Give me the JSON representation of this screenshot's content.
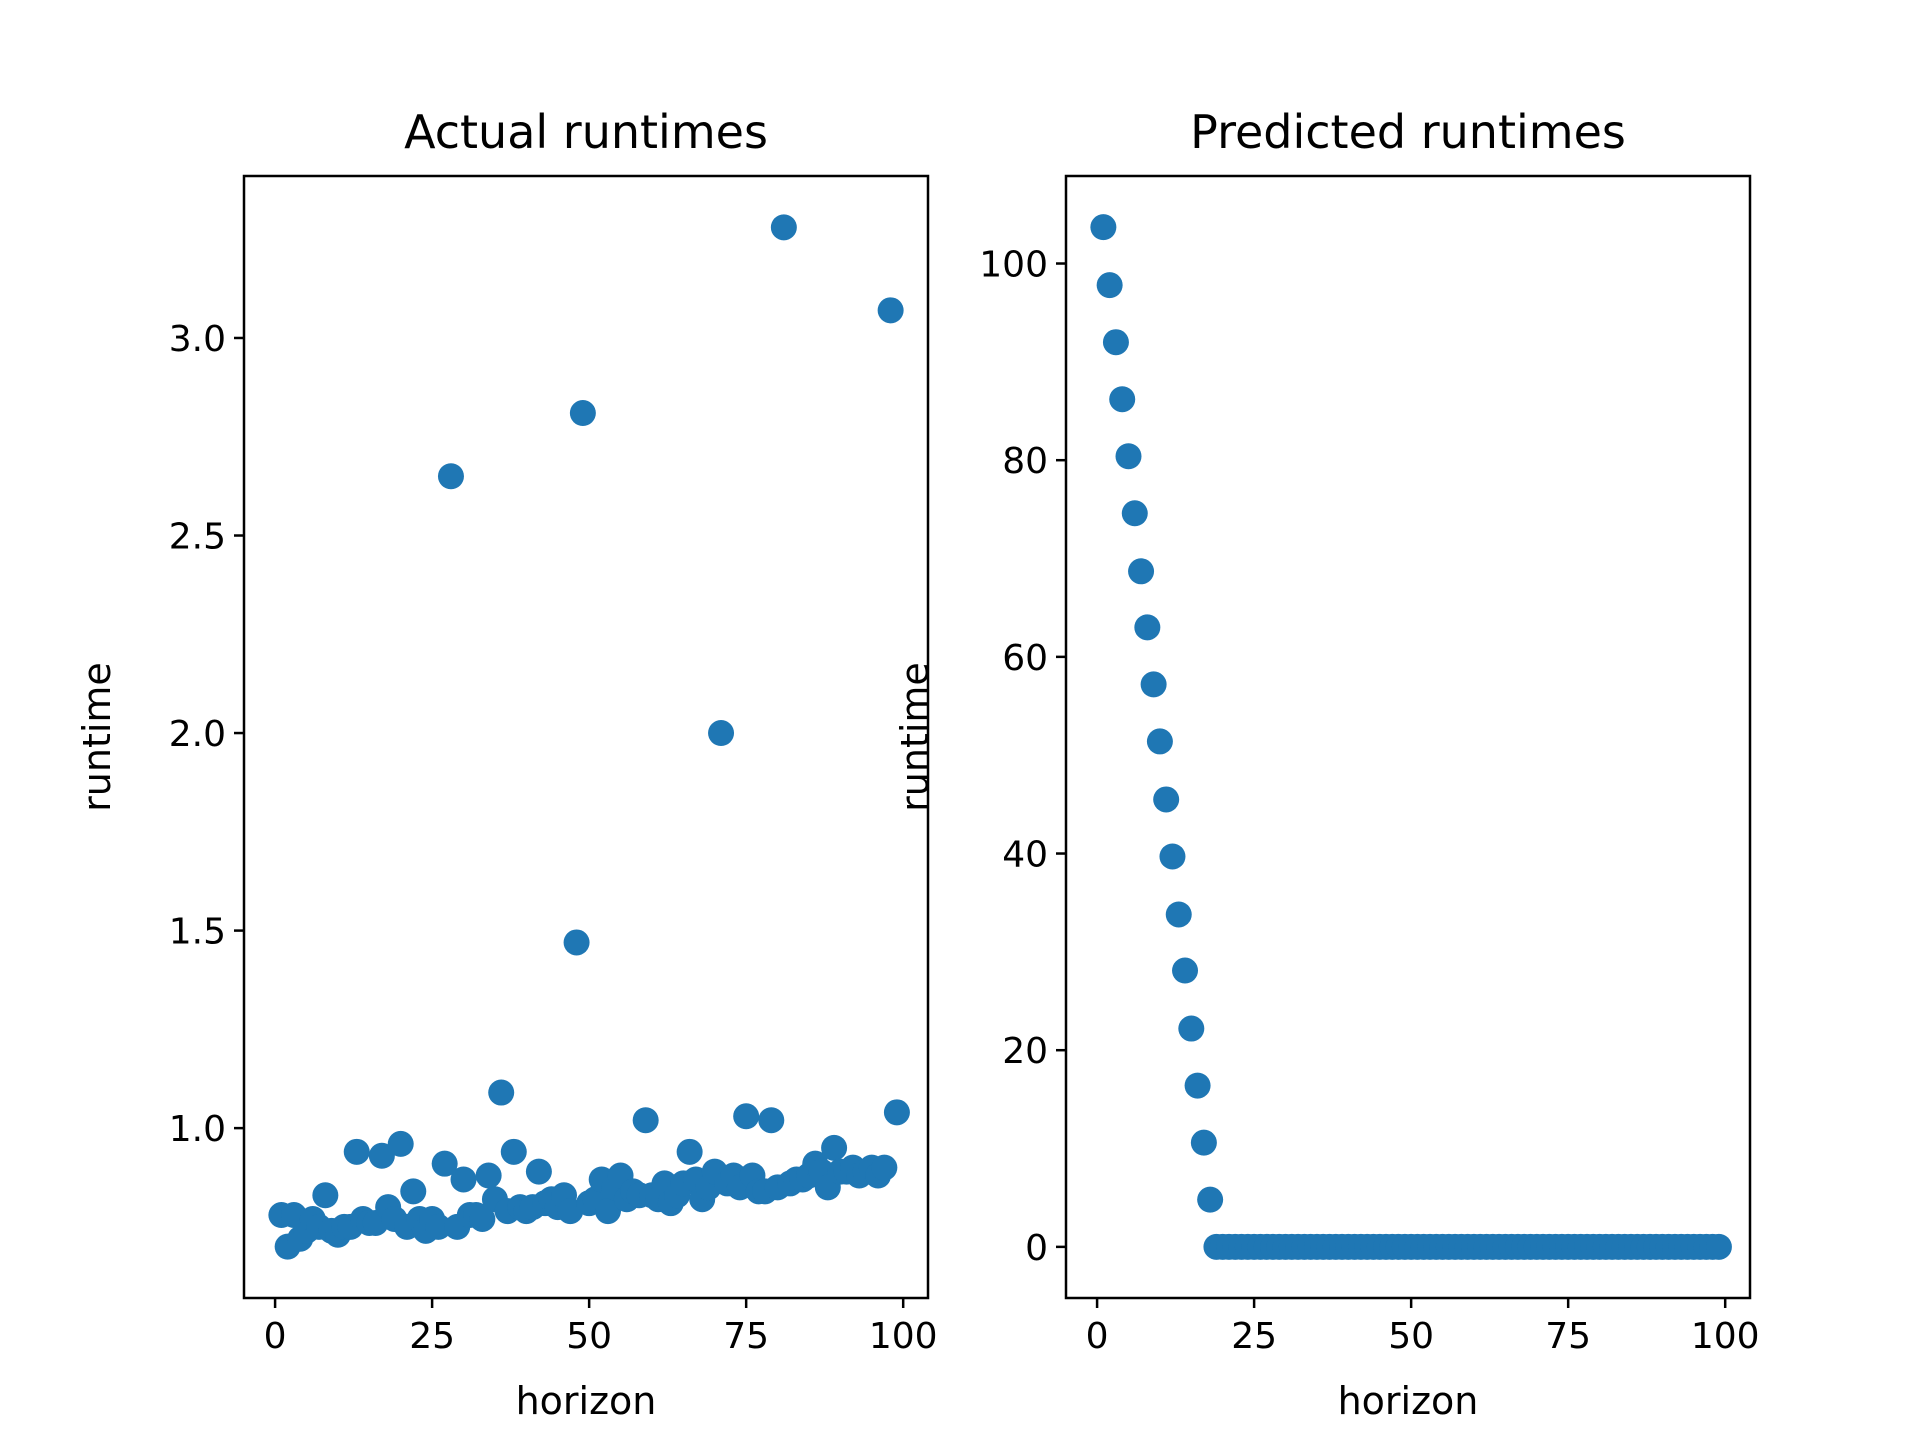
{
  "chart_data": [
    {
      "type": "scatter",
      "title": "Actual runtimes",
      "xlabel": "horizon",
      "ylabel": "runtime",
      "xlim": [
        -4.95,
        103.95
      ],
      "ylim": [
        0.57,
        3.41
      ],
      "xticks": [
        0,
        25,
        50,
        75,
        100
      ],
      "xtick_labels": [
        "0",
        "25",
        "50",
        "75",
        "100"
      ],
      "yticks": [
        1.0,
        1.5,
        2.0,
        2.5,
        3.0
      ],
      "ytick_labels": [
        "1.0",
        "1.5",
        "2.0",
        "2.5",
        "3.0"
      ],
      "color": "#1f77b4",
      "grid": false,
      "series": [
        {
          "x": [
            1,
            2,
            3,
            4,
            5,
            6,
            7,
            8,
            9,
            10,
            11,
            12,
            13,
            14,
            15,
            16,
            17,
            18,
            19,
            20,
            21,
            22,
            23,
            24,
            25,
            26,
            27,
            28,
            29,
            30,
            31,
            32,
            33,
            34,
            35,
            36,
            37,
            38,
            39,
            40,
            41,
            42,
            43,
            44,
            45,
            46,
            47,
            48,
            49,
            50,
            51,
            52,
            53,
            54,
            55,
            56,
            57,
            58,
            59,
            60,
            61,
            62,
            63,
            64,
            65,
            66,
            67,
            68,
            69,
            70,
            71,
            72,
            73,
            74,
            75,
            76,
            77,
            78,
            79,
            80,
            81,
            82,
            83,
            84,
            85,
            86,
            87,
            88,
            89,
            90,
            91,
            92,
            93,
            94,
            95,
            96,
            97,
            98,
            99
          ],
          "y": [
            0.78,
            0.7,
            0.78,
            0.72,
            0.74,
            0.77,
            0.75,
            0.83,
            0.74,
            0.73,
            0.75,
            0.75,
            0.94,
            0.77,
            0.76,
            0.76,
            0.93,
            0.8,
            0.77,
            0.96,
            0.75,
            0.84,
            0.77,
            0.74,
            0.77,
            0.75,
            0.91,
            2.65,
            0.75,
            0.87,
            0.78,
            0.78,
            0.77,
            0.88,
            0.82,
            1.09,
            0.79,
            0.94,
            0.8,
            0.79,
            0.8,
            0.89,
            0.81,
            0.82,
            0.8,
            0.83,
            0.79,
            1.47,
            2.81,
            0.81,
            0.82,
            0.87,
            0.79,
            0.85,
            0.88,
            0.82,
            0.84,
            0.83,
            1.02,
            0.83,
            0.82,
            0.86,
            0.81,
            0.83,
            0.86,
            0.94,
            0.87,
            0.82,
            0.85,
            0.89,
            2.0,
            0.86,
            0.88,
            0.85,
            1.03,
            0.88,
            0.84,
            0.84,
            1.02,
            0.85,
            3.28,
            0.86,
            0.87,
            0.87,
            0.88,
            0.91,
            0.89,
            0.85,
            0.95,
            0.89,
            0.89,
            0.9,
            0.88,
            0.89,
            0.9,
            0.88,
            0.9,
            3.07,
            1.04
          ]
        }
      ]
    },
    {
      "type": "scatter",
      "title": "Predicted runtimes",
      "xlabel": "horizon",
      "ylabel": "runtime",
      "xlim": [
        -4.95,
        103.95
      ],
      "ylim": [
        -5.2,
        108.9
      ],
      "xticks": [
        0,
        25,
        50,
        75,
        100
      ],
      "xtick_labels": [
        "0",
        "25",
        "50",
        "75",
        "100"
      ],
      "yticks": [
        0,
        20,
        40,
        60,
        80,
        100
      ],
      "ytick_labels": [
        "0",
        "20",
        "40",
        "60",
        "80",
        "100"
      ],
      "color": "#1f77b4",
      "grid": false,
      "series": [
        {
          "x": [
            1,
            2,
            3,
            4,
            5,
            6,
            7,
            8,
            9,
            10,
            11,
            12,
            13,
            14,
            15,
            16,
            17,
            18,
            19,
            20,
            21,
            22,
            23,
            24,
            25,
            26,
            27,
            28,
            29,
            30,
            31,
            32,
            33,
            34,
            35,
            36,
            37,
            38,
            39,
            40,
            41,
            42,
            43,
            44,
            45,
            46,
            47,
            48,
            49,
            50,
            51,
            52,
            53,
            54,
            55,
            56,
            57,
            58,
            59,
            60,
            61,
            62,
            63,
            64,
            65,
            66,
            67,
            68,
            69,
            70,
            71,
            72,
            73,
            74,
            75,
            76,
            77,
            78,
            79,
            80,
            81,
            82,
            83,
            84,
            85,
            86,
            87,
            88,
            89,
            90,
            91,
            92,
            93,
            94,
            95,
            96,
            97,
            98,
            99
          ],
          "y": [
            103.7,
            97.8,
            92.0,
            86.2,
            80.4,
            74.6,
            68.7,
            63.0,
            57.2,
            51.4,
            45.5,
            39.7,
            33.8,
            28.1,
            22.2,
            16.4,
            10.6,
            4.8,
            0,
            0,
            0,
            0,
            0,
            0,
            0,
            0,
            0,
            0,
            0,
            0,
            0,
            0,
            0,
            0,
            0,
            0,
            0,
            0,
            0,
            0,
            0,
            0,
            0,
            0,
            0,
            0,
            0,
            0,
            0,
            0,
            0,
            0,
            0,
            0,
            0,
            0,
            0,
            0,
            0,
            0,
            0,
            0,
            0,
            0,
            0,
            0,
            0,
            0,
            0,
            0,
            0,
            0,
            0,
            0,
            0,
            0,
            0,
            0,
            0,
            0,
            0,
            0,
            0,
            0,
            0,
            0,
            0,
            0,
            0,
            0,
            0,
            0,
            0,
            0,
            0,
            0,
            0,
            0,
            0
          ]
        }
      ]
    }
  ]
}
